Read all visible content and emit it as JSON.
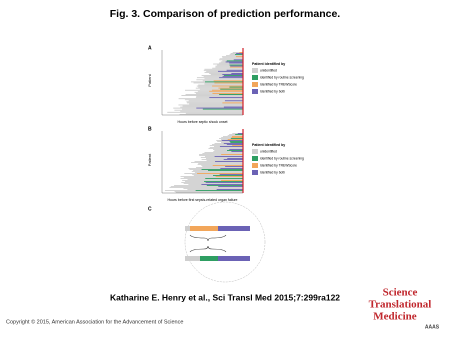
{
  "header": {
    "title": "Fig. 3. Comparison of prediction performance."
  },
  "figure": {
    "panels": [
      {
        "label": "A",
        "y_label": "Patient",
        "x_label": "Hours before septic shock onset"
      },
      {
        "label": "B",
        "y_label": "Patient",
        "x_label": "Hours before first sepsis-related organ failure"
      },
      {
        "label": "C"
      }
    ],
    "legend": {
      "title": "Patient identified by",
      "items": [
        {
          "label": "unidentified",
          "color": "#cfcfcf"
        },
        {
          "label": "identified by routine screening",
          "color": "#2e9e62"
        },
        {
          "label": "Identified by TREWScore",
          "color": "#f2a65a"
        },
        {
          "label": "Identified by both",
          "color": "#6b62b5"
        }
      ]
    }
  },
  "citation": "Katharine E. Henry et al., Sci Transl Med 2015;7:299ra122",
  "copyright": "Copyright © 2015, American Association for the Advancement of Science",
  "logo": {
    "lines": [
      "Science",
      "Translational",
      "Medicine"
    ],
    "org": "AAAS"
  }
}
